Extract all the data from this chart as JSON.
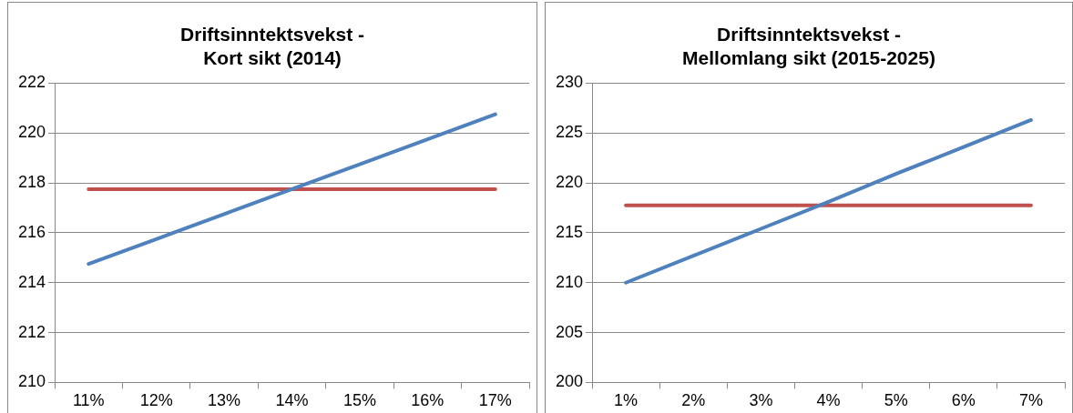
{
  "chart_data": [
    {
      "type": "line",
      "title": "Driftsinntektsvekst -\nKort sikt (2014)",
      "categories": [
        "11%",
        "12%",
        "13%",
        "14%",
        "15%",
        "16%",
        "17%"
      ],
      "series": [
        {
          "color": "#4f81bd",
          "values": [
            214.75,
            215.75,
            216.75,
            217.75,
            218.75,
            219.75,
            220.75
          ]
        },
        {
          "color": "#c0504d",
          "values": [
            217.75,
            217.75,
            217.75,
            217.75,
            217.75,
            217.75,
            217.75
          ]
        }
      ],
      "ylim": [
        210,
        222
      ],
      "yticks": [
        210,
        212,
        214,
        216,
        218,
        220,
        222
      ],
      "grid": "y",
      "legend": false,
      "marker": "none",
      "line_style": "solid"
    },
    {
      "type": "line",
      "title": "Driftsinntektsvekst -\nMellomlang sikt (2015-2025)",
      "categories": [
        "1%",
        "2%",
        "3%",
        "4%",
        "5%",
        "6%",
        "7%"
      ],
      "series": [
        {
          "color": "#4f81bd",
          "values": [
            210,
            212.7,
            215.4,
            218.1,
            220.9,
            223.6,
            226.3
          ]
        },
        {
          "color": "#c0504d",
          "values": [
            217.75,
            217.75,
            217.75,
            217.75,
            217.75,
            217.75,
            217.75
          ]
        }
      ],
      "ylim": [
        200,
        230
      ],
      "yticks": [
        200,
        205,
        210,
        215,
        220,
        225,
        230
      ],
      "grid": "y",
      "legend": false,
      "marker": "none",
      "line_style": "solid"
    }
  ]
}
